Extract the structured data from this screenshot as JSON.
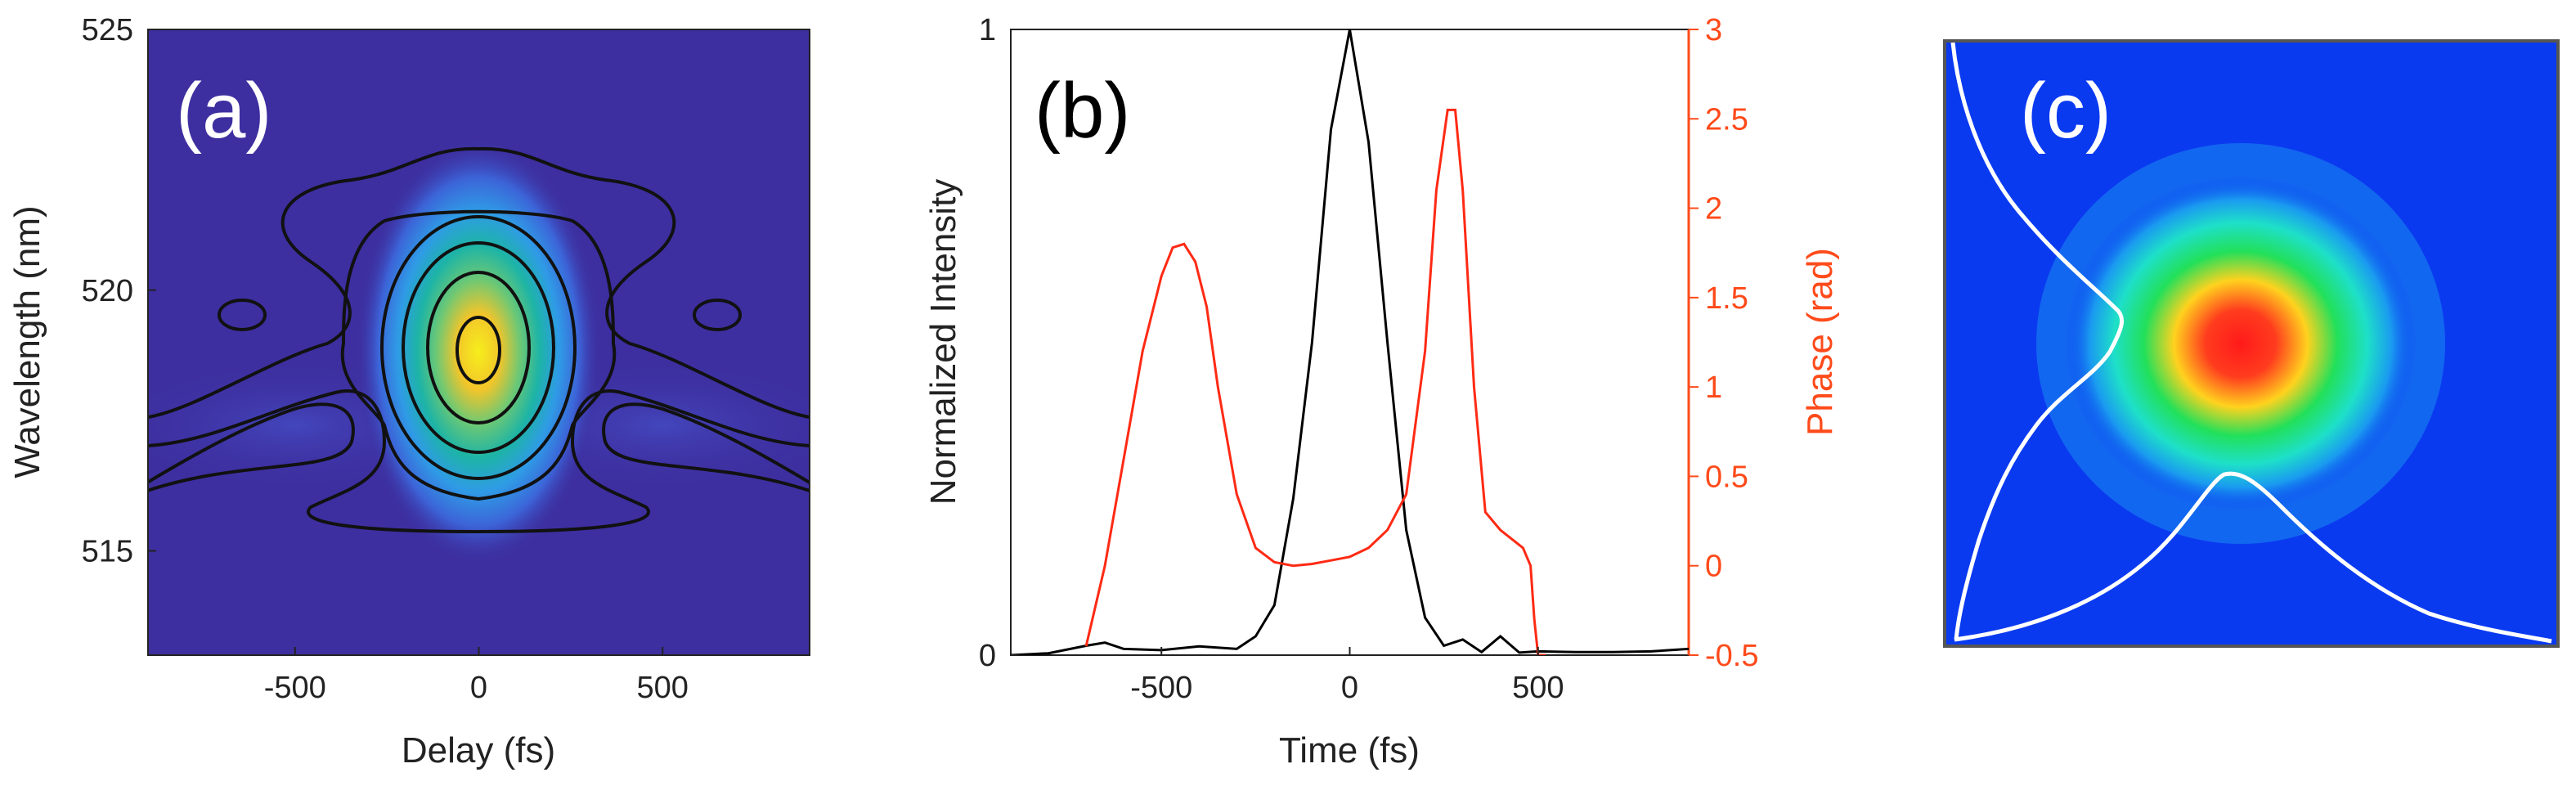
{
  "colors": {
    "background_a": "#3d2fa0",
    "contour": "#111111",
    "intensity_line": "#000000",
    "phase_line": "#ff2a14",
    "phase_axis": "#ff4a1a",
    "beam_bg": "#0a3af0",
    "beam_profile": "#ffffff"
  },
  "chart_data": [
    {
      "type": "heatmap",
      "panel_label": "(a)",
      "title": "",
      "xlabel": "Delay (fs)",
      "ylabel": "Wavelength (nm)",
      "xlim": [
        -900,
        900
      ],
      "ylim": [
        513,
        525
      ],
      "xticks": [
        -500,
        0,
        500
      ],
      "yticks": [
        515,
        520,
        525
      ],
      "xtick_labels": [
        "-500",
        "0",
        "500"
      ],
      "ytick_labels": [
        "515",
        "520",
        "525"
      ],
      "peak": {
        "delay": 0,
        "wavelength": 519
      },
      "contour_levels": [
        0.02,
        0.15,
        0.3,
        0.5,
        0.7,
        0.9
      ]
    },
    {
      "type": "line",
      "panel_label": "(b)",
      "title": "",
      "xlabel": "Time (fs)",
      "ylabel": "Normalized Intensity",
      "y2label": "Phase (rad)",
      "xlim": [
        -900,
        900
      ],
      "ylim": [
        0,
        1
      ],
      "y2lim": [
        -0.5,
        3
      ],
      "xticks": [
        -500,
        0,
        500
      ],
      "yticks": [
        0,
        1
      ],
      "y2ticks": [
        -0.5,
        0,
        0.5,
        1,
        1.5,
        2,
        2.5,
        3
      ],
      "xtick_labels": [
        "-500",
        "0",
        "500"
      ],
      "ytick_labels": [
        "0",
        "1"
      ],
      "y2tick_labels": [
        "-0.5",
        "0",
        "0.5",
        "1",
        "1.5",
        "2",
        "2.5",
        "3"
      ],
      "series": [
        {
          "name": "Normalized Intensity",
          "axis": "left",
          "x": [
            -900,
            -800,
            -700,
            -650,
            -600,
            -500,
            -400,
            -300,
            -250,
            -200,
            -150,
            -100,
            -50,
            0,
            50,
            100,
            150,
            200,
            250,
            300,
            350,
            400,
            450,
            500,
            600,
            700,
            800,
            900
          ],
          "y": [
            0,
            0.003,
            0.015,
            0.02,
            0.01,
            0.008,
            0.014,
            0.01,
            0.03,
            0.08,
            0.25,
            0.5,
            0.84,
            1.0,
            0.82,
            0.5,
            0.2,
            0.06,
            0.015,
            0.025,
            0.005,
            0.03,
            0.004,
            0.006,
            0.005,
            0.005,
            0.006,
            0.01
          ]
        },
        {
          "name": "Phase (rad)",
          "axis": "right",
          "x": [
            -700,
            -650,
            -600,
            -550,
            -500,
            -470,
            -440,
            -410,
            -380,
            -350,
            -300,
            -250,
            -200,
            -150,
            -100,
            -50,
            0,
            50,
            100,
            150,
            200,
            230,
            260,
            280,
            300,
            330,
            360,
            400,
            430,
            460,
            480,
            490,
            500,
            520
          ],
          "y": [
            -0.45,
            0.0,
            0.6,
            1.2,
            1.62,
            1.78,
            1.8,
            1.7,
            1.45,
            1.0,
            0.4,
            0.1,
            0.02,
            0.0,
            0.01,
            0.03,
            0.05,
            0.1,
            0.2,
            0.4,
            1.2,
            2.1,
            2.55,
            2.55,
            2.1,
            1.0,
            0.3,
            0.2,
            0.15,
            0.1,
            0.0,
            -0.3,
            -0.5,
            -0.5
          ]
        }
      ]
    },
    {
      "type": "heatmap",
      "panel_label": "(c)",
      "title": "",
      "xlabel": "",
      "ylabel": "",
      "description_values": {
        "beam_center_x_frac": 0.5,
        "beam_center_y_frac": 0.55
      }
    }
  ]
}
